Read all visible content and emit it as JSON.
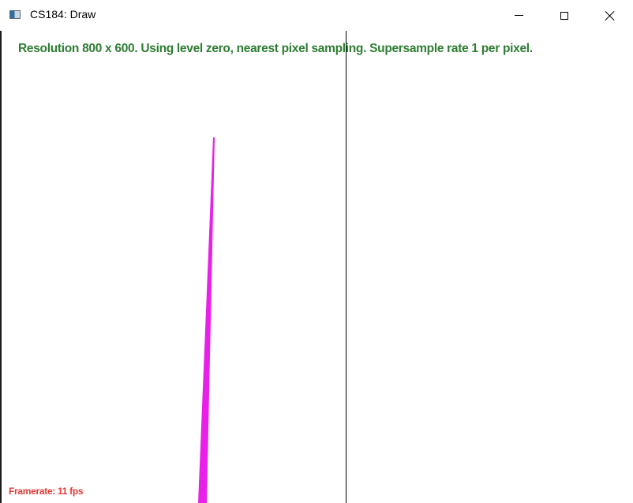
{
  "window": {
    "title": "CS184: Draw",
    "icon": "app-window-icon",
    "controls": {
      "minimize": "minimize-icon",
      "maximize": "maximize-icon",
      "close": "close-icon"
    }
  },
  "canvas": {
    "status_text": "Resolution 800 x 600. Using level zero, nearest pixel sampling. Supersample rate 1 per pixel.",
    "framerate_text": "Framerate: 11 fps",
    "colors": {
      "status_text": "#2e7d32",
      "framerate_text": "#e53935",
      "triangle_fill": "#e820e8",
      "divider_line": "#000000"
    }
  }
}
